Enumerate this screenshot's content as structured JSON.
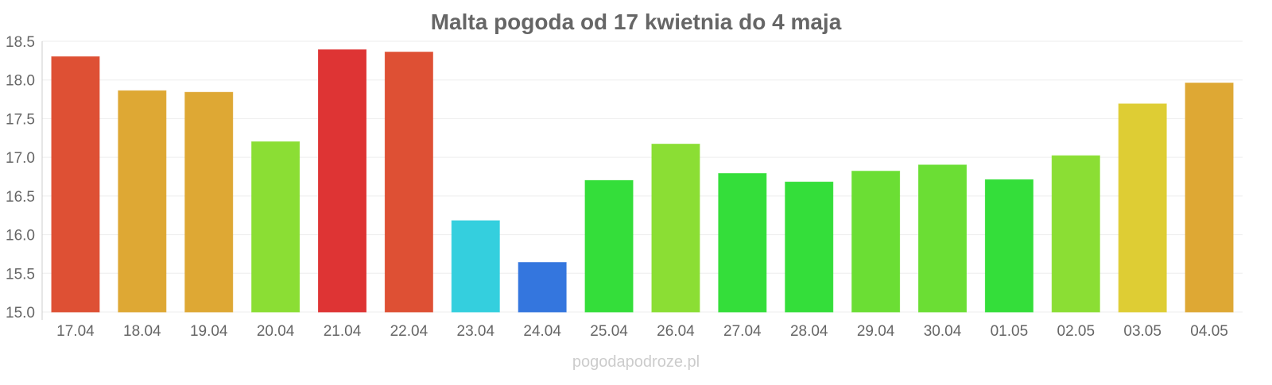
{
  "chart_data": {
    "type": "bar",
    "title": "Malta pogoda od 17 kwietnia do 4 maja",
    "xlabel": "",
    "ylabel": "",
    "ylim": [
      15.0,
      18.5
    ],
    "yticks": [
      "15.0",
      "15.5",
      "16.0",
      "16.5",
      "17.0",
      "17.5",
      "18.0",
      "18.5"
    ],
    "grid": true,
    "categories": [
      "17.04",
      "18.04",
      "19.04",
      "20.04",
      "21.04",
      "22.04",
      "23.04",
      "24.04",
      "25.04",
      "26.04",
      "27.04",
      "28.04",
      "29.04",
      "30.04",
      "01.05",
      "02.05",
      "03.05",
      "04.05"
    ],
    "values": [
      18.3,
      17.86,
      17.84,
      17.2,
      18.39,
      18.36,
      16.18,
      15.64,
      16.7,
      17.17,
      16.79,
      16.68,
      16.82,
      16.9,
      16.71,
      17.02,
      17.69,
      17.96
    ],
    "colors": [
      "#de5034",
      "#dea834",
      "#dea834",
      "#8bde34",
      "#de3434",
      "#de5034",
      "#34cfde",
      "#3476de",
      "#34de3a",
      "#8bde34",
      "#34de3a",
      "#34de3a",
      "#6bde34",
      "#6bde34",
      "#34de3a",
      "#8bde34",
      "#decd34",
      "#dea834"
    ]
  },
  "watermark": "pogodapodroze.pl"
}
